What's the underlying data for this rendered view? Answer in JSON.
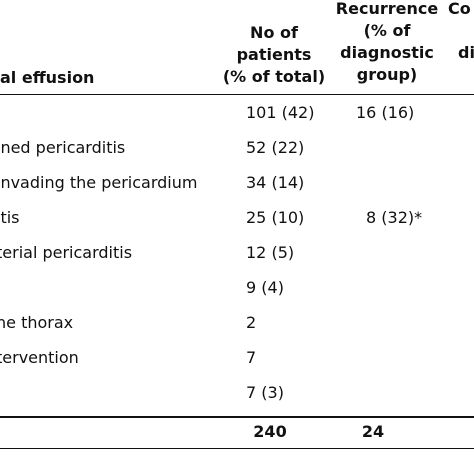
{
  "header": {
    "row_label_header": "al effusion",
    "col_patients": [
      "No of",
      "patients",
      "(% of total)"
    ],
    "col_recurrence": [
      "Recurrence",
      "(% of",
      "diagnostic",
      "group)"
    ],
    "col_cut_partial": [
      "Co",
      "di"
    ]
  },
  "rows": [
    {
      "label": "",
      "patients": "101 (42)",
      "recurrence": "16 (16)"
    },
    {
      "label": "ined pericarditis",
      "patients": "52 (22)",
      "recurrence": ""
    },
    {
      "label": " invading the pericardium",
      "patients": "34 (14)",
      "recurrence": ""
    },
    {
      "label": "itis",
      "patients": "25 (10)",
      "recurrence": "8 (32)*"
    },
    {
      "label": "terial pericarditis",
      "patients": "12 (5)",
      "recurrence": ""
    },
    {
      "label": "",
      "patients": "9 (4)",
      "recurrence": ""
    },
    {
      "label": "ne thorax",
      "patients": "2",
      "recurrence": ""
    },
    {
      "label": "tervention",
      "patients": "7",
      "recurrence": ""
    },
    {
      "label": "",
      "patients": "7 (3)",
      "recurrence": ""
    }
  ],
  "totals": {
    "patients": "240",
    "recurrence": "24"
  }
}
